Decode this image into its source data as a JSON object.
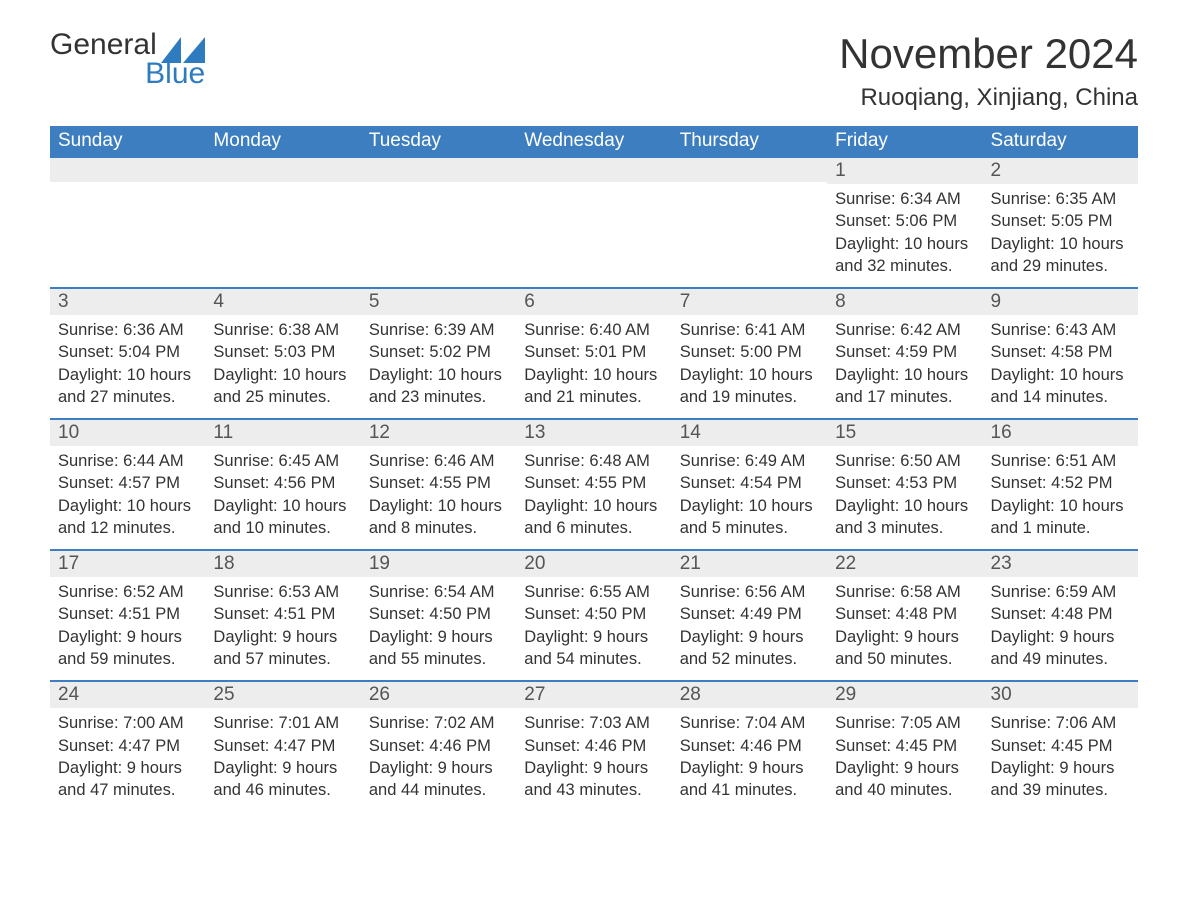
{
  "logo": {
    "general": "General",
    "blue": "Blue"
  },
  "title": "November 2024",
  "location": "Ruoqiang, Xinjiang, China",
  "colors": {
    "header_bg": "#3c7ebf",
    "header_text": "#ffffff",
    "daynum_bg": "#ededed",
    "border": "#3c7ebf",
    "body_text": "#333333",
    "logo_blue": "#2f7bbf"
  },
  "weekdays": [
    "Sunday",
    "Monday",
    "Tuesday",
    "Wednesday",
    "Thursday",
    "Friday",
    "Saturday"
  ],
  "weeks": [
    [
      null,
      null,
      null,
      null,
      null,
      {
        "d": "1",
        "sunrise": "6:34 AM",
        "sunset": "5:06 PM",
        "daylight": "10 hours and 32 minutes."
      },
      {
        "d": "2",
        "sunrise": "6:35 AM",
        "sunset": "5:05 PM",
        "daylight": "10 hours and 29 minutes."
      }
    ],
    [
      {
        "d": "3",
        "sunrise": "6:36 AM",
        "sunset": "5:04 PM",
        "daylight": "10 hours and 27 minutes."
      },
      {
        "d": "4",
        "sunrise": "6:38 AM",
        "sunset": "5:03 PM",
        "daylight": "10 hours and 25 minutes."
      },
      {
        "d": "5",
        "sunrise": "6:39 AM",
        "sunset": "5:02 PM",
        "daylight": "10 hours and 23 minutes."
      },
      {
        "d": "6",
        "sunrise": "6:40 AM",
        "sunset": "5:01 PM",
        "daylight": "10 hours and 21 minutes."
      },
      {
        "d": "7",
        "sunrise": "6:41 AM",
        "sunset": "5:00 PM",
        "daylight": "10 hours and 19 minutes."
      },
      {
        "d": "8",
        "sunrise": "6:42 AM",
        "sunset": "4:59 PM",
        "daylight": "10 hours and 17 minutes."
      },
      {
        "d": "9",
        "sunrise": "6:43 AM",
        "sunset": "4:58 PM",
        "daylight": "10 hours and 14 minutes."
      }
    ],
    [
      {
        "d": "10",
        "sunrise": "6:44 AM",
        "sunset": "4:57 PM",
        "daylight": "10 hours and 12 minutes."
      },
      {
        "d": "11",
        "sunrise": "6:45 AM",
        "sunset": "4:56 PM",
        "daylight": "10 hours and 10 minutes."
      },
      {
        "d": "12",
        "sunrise": "6:46 AM",
        "sunset": "4:55 PM",
        "daylight": "10 hours and 8 minutes."
      },
      {
        "d": "13",
        "sunrise": "6:48 AM",
        "sunset": "4:55 PM",
        "daylight": "10 hours and 6 minutes."
      },
      {
        "d": "14",
        "sunrise": "6:49 AM",
        "sunset": "4:54 PM",
        "daylight": "10 hours and 5 minutes."
      },
      {
        "d": "15",
        "sunrise": "6:50 AM",
        "sunset": "4:53 PM",
        "daylight": "10 hours and 3 minutes."
      },
      {
        "d": "16",
        "sunrise": "6:51 AM",
        "sunset": "4:52 PM",
        "daylight": "10 hours and 1 minute."
      }
    ],
    [
      {
        "d": "17",
        "sunrise": "6:52 AM",
        "sunset": "4:51 PM",
        "daylight": "9 hours and 59 minutes."
      },
      {
        "d": "18",
        "sunrise": "6:53 AM",
        "sunset": "4:51 PM",
        "daylight": "9 hours and 57 minutes."
      },
      {
        "d": "19",
        "sunrise": "6:54 AM",
        "sunset": "4:50 PM",
        "daylight": "9 hours and 55 minutes."
      },
      {
        "d": "20",
        "sunrise": "6:55 AM",
        "sunset": "4:50 PM",
        "daylight": "9 hours and 54 minutes."
      },
      {
        "d": "21",
        "sunrise": "6:56 AM",
        "sunset": "4:49 PM",
        "daylight": "9 hours and 52 minutes."
      },
      {
        "d": "22",
        "sunrise": "6:58 AM",
        "sunset": "4:48 PM",
        "daylight": "9 hours and 50 minutes."
      },
      {
        "d": "23",
        "sunrise": "6:59 AM",
        "sunset": "4:48 PM",
        "daylight": "9 hours and 49 minutes."
      }
    ],
    [
      {
        "d": "24",
        "sunrise": "7:00 AM",
        "sunset": "4:47 PM",
        "daylight": "9 hours and 47 minutes."
      },
      {
        "d": "25",
        "sunrise": "7:01 AM",
        "sunset": "4:47 PM",
        "daylight": "9 hours and 46 minutes."
      },
      {
        "d": "26",
        "sunrise": "7:02 AM",
        "sunset": "4:46 PM",
        "daylight": "9 hours and 44 minutes."
      },
      {
        "d": "27",
        "sunrise": "7:03 AM",
        "sunset": "4:46 PM",
        "daylight": "9 hours and 43 minutes."
      },
      {
        "d": "28",
        "sunrise": "7:04 AM",
        "sunset": "4:46 PM",
        "daylight": "9 hours and 41 minutes."
      },
      {
        "d": "29",
        "sunrise": "7:05 AM",
        "sunset": "4:45 PM",
        "daylight": "9 hours and 40 minutes."
      },
      {
        "d": "30",
        "sunrise": "7:06 AM",
        "sunset": "4:45 PM",
        "daylight": "9 hours and 39 minutes."
      }
    ]
  ],
  "labels": {
    "sunrise": "Sunrise: ",
    "sunset": "Sunset: ",
    "daylight": "Daylight: "
  }
}
